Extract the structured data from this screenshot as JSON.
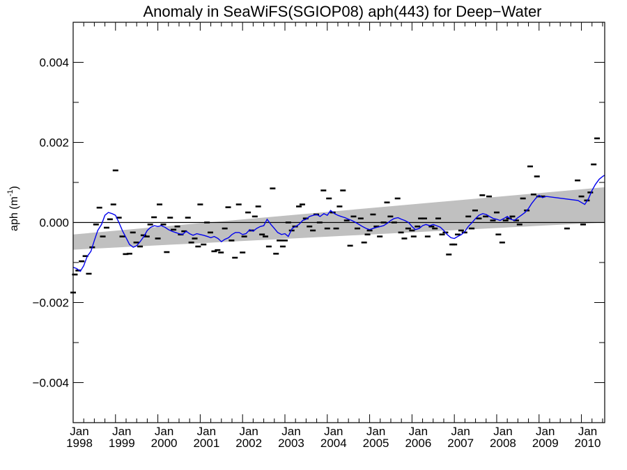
{
  "chart_data": {
    "type": "scatter",
    "title": "Anomaly in SeaWiFS(SGIOP08) aph(443) for Deep−Water",
    "ylabel_main": "aph (m",
    "ylabel_sup": "-1",
    "ylabel_close": ")",
    "xlabel": "",
    "xlim": [
      1998.0,
      2010.55
    ],
    "ylim": [
      -0.005,
      0.005
    ],
    "y_ticks": [
      {
        "value": 0.004,
        "label": "0.004"
      },
      {
        "value": 0.002,
        "label": "0.002"
      },
      {
        "value": 0.0,
        "label": "0.000"
      },
      {
        "value": -0.002,
        "label": "−0.002"
      },
      {
        "value": -0.004,
        "label": "−0.004"
      }
    ],
    "x_ticks": [
      {
        "value": 1998,
        "month": "Jan",
        "year": "1998"
      },
      {
        "value": 1999,
        "month": "Jan",
        "year": "1999"
      },
      {
        "value": 2000,
        "month": "Jan",
        "year": "2000"
      },
      {
        "value": 2001,
        "month": "Jan",
        "year": "2001"
      },
      {
        "value": 2002,
        "month": "Jan",
        "year": "2002"
      },
      {
        "value": 2003,
        "month": "Jan",
        "year": "2003"
      },
      {
        "value": 2004,
        "month": "Jan",
        "year": "2004"
      },
      {
        "value": 2005,
        "month": "Jan",
        "year": "2005"
      },
      {
        "value": 2006,
        "month": "Jan",
        "year": "2006"
      },
      {
        "value": 2007,
        "month": "Jan",
        "year": "2007"
      },
      {
        "value": 2008,
        "month": "Jan",
        "year": "2008"
      },
      {
        "value": 2009,
        "month": "Jan",
        "year": "2009"
      },
      {
        "value": 2010,
        "month": "Jan",
        "year": "2010"
      }
    ],
    "zero_line": 0.0,
    "trend_band": {
      "x": [
        1998.0,
        2010.55
      ],
      "lower": [
        -0.00068,
        0.0
      ],
      "upper": [
        -0.0003,
        0.00088
      ]
    },
    "monthly_anomalies": [
      {
        "x": 1998.0,
        "y": -0.00175
      },
      {
        "x": 1998.04,
        "y": -0.0013
      },
      {
        "x": 1998.12,
        "y": -0.0012
      },
      {
        "x": 1998.2,
        "y": -0.00097
      },
      {
        "x": 1998.29,
        "y": -0.00084
      },
      {
        "x": 1998.37,
        "y": -0.00128
      },
      {
        "x": 1998.45,
        "y": -0.00062
      },
      {
        "x": 1998.54,
        "y": -5e-05
      },
      {
        "x": 1998.62,
        "y": 0.00037
      },
      {
        "x": 1998.7,
        "y": -0.00035
      },
      {
        "x": 1998.79,
        "y": -0.00013
      },
      {
        "x": 1998.87,
        "y": 8e-05
      },
      {
        "x": 1998.95,
        "y": 0.00045
      },
      {
        "x": 1999.0,
        "y": 0.0013
      },
      {
        "x": 1999.08,
        "y": 0.00012
      },
      {
        "x": 1999.16,
        "y": -0.00035
      },
      {
        "x": 1999.24,
        "y": -0.00079
      },
      {
        "x": 1999.33,
        "y": -0.00078
      },
      {
        "x": 1999.41,
        "y": -0.00025
      },
      {
        "x": 1999.49,
        "y": -0.0005
      },
      {
        "x": 1999.58,
        "y": -0.0006
      },
      {
        "x": 1999.66,
        "y": -0.00032
      },
      {
        "x": 1999.74,
        "y": -0.00035
      },
      {
        "x": 1999.82,
        "y": -5e-05
      },
      {
        "x": 1999.91,
        "y": 0.00013
      },
      {
        "x": 2000.0,
        "y": -0.0004
      },
      {
        "x": 2000.04,
        "y": 0.00045
      },
      {
        "x": 2000.13,
        "y": -5e-05
      },
      {
        "x": 2000.21,
        "y": -0.00074
      },
      {
        "x": 2000.29,
        "y": 0.00012
      },
      {
        "x": 2000.37,
        "y": -0.00018
      },
      {
        "x": 2000.46,
        "y": -0.0001
      },
      {
        "x": 2000.54,
        "y": -0.0003
      },
      {
        "x": 2000.62,
        "y": -0.00022
      },
      {
        "x": 2000.71,
        "y": 0.00012
      },
      {
        "x": 2000.79,
        "y": -0.0005
      },
      {
        "x": 2000.87,
        "y": -0.0004
      },
      {
        "x": 2000.95,
        "y": -0.0006
      },
      {
        "x": 2001.0,
        "y": 0.00045
      },
      {
        "x": 2001.08,
        "y": -0.00055
      },
      {
        "x": 2001.16,
        "y": 0.0
      },
      {
        "x": 2001.24,
        "y": -0.00025
      },
      {
        "x": 2001.33,
        "y": -0.00072
      },
      {
        "x": 2001.41,
        "y": -0.00069
      },
      {
        "x": 2001.49,
        "y": -0.00075
      },
      {
        "x": 2001.58,
        "y": -0.00015
      },
      {
        "x": 2001.66,
        "y": 0.00038
      },
      {
        "x": 2001.74,
        "y": -0.00045
      },
      {
        "x": 2001.82,
        "y": -0.00088
      },
      {
        "x": 2001.91,
        "y": 0.00045
      },
      {
        "x": 2002.0,
        "y": -0.00075
      },
      {
        "x": 2002.04,
        "y": -0.00035
      },
      {
        "x": 2002.13,
        "y": 0.00025
      },
      {
        "x": 2002.21,
        "y": -0.0002
      },
      {
        "x": 2002.29,
        "y": 0.00015
      },
      {
        "x": 2002.37,
        "y": 0.0004
      },
      {
        "x": 2002.46,
        "y": -0.0003
      },
      {
        "x": 2002.54,
        "y": -0.00035
      },
      {
        "x": 2002.62,
        "y": -0.0006
      },
      {
        "x": 2002.71,
        "y": 0.00085
      },
      {
        "x": 2002.79,
        "y": -0.00078
      },
      {
        "x": 2002.87,
        "y": -0.00045
      },
      {
        "x": 2002.95,
        "y": -0.0006
      },
      {
        "x": 2003.0,
        "y": -0.00045
      },
      {
        "x": 2003.08,
        "y": 0.0
      },
      {
        "x": 2003.16,
        "y": -0.0002
      },
      {
        "x": 2003.24,
        "y": -0.0001
      },
      {
        "x": 2003.33,
        "y": 0.0004
      },
      {
        "x": 2003.41,
        "y": 0.00045
      },
      {
        "x": 2003.49,
        "y": 0.0001
      },
      {
        "x": 2003.58,
        "y": -0.0001
      },
      {
        "x": 2003.66,
        "y": -0.0002
      },
      {
        "x": 2003.74,
        "y": 0.0002
      },
      {
        "x": 2003.82,
        "y": 0.0
      },
      {
        "x": 2003.91,
        "y": 0.0008
      },
      {
        "x": 2004.0,
        "y": -0.00015
      },
      {
        "x": 2004.04,
        "y": 0.0006
      },
      {
        "x": 2004.13,
        "y": 0.00025
      },
      {
        "x": 2004.21,
        "y": -0.00015
      },
      {
        "x": 2004.29,
        "y": 0.0004
      },
      {
        "x": 2004.37,
        "y": 0.0008
      },
      {
        "x": 2004.46,
        "y": 5e-05
      },
      {
        "x": 2004.54,
        "y": -0.00058
      },
      {
        "x": 2004.62,
        "y": 0.00015
      },
      {
        "x": 2004.71,
        "y": -0.00015
      },
      {
        "x": 2004.79,
        "y": 0.0001
      },
      {
        "x": 2004.87,
        "y": -0.0005
      },
      {
        "x": 2004.95,
        "y": -0.0003
      },
      {
        "x": 2005.0,
        "y": -0.0002
      },
      {
        "x": 2005.08,
        "y": 0.0002
      },
      {
        "x": 2005.16,
        "y": -0.0001
      },
      {
        "x": 2005.24,
        "y": -0.00035
      },
      {
        "x": 2005.33,
        "y": 0.0
      },
      {
        "x": 2005.41,
        "y": 0.0005
      },
      {
        "x": 2005.49,
        "y": 0.00015
      },
      {
        "x": 2005.58,
        "y": 0.0
      },
      {
        "x": 2005.66,
        "y": 0.0006
      },
      {
        "x": 2005.74,
        "y": -0.00025
      },
      {
        "x": 2005.82,
        "y": -0.0004
      },
      {
        "x": 2005.91,
        "y": -0.00015
      },
      {
        "x": 2006.0,
        "y": -0.0002
      },
      {
        "x": 2006.04,
        "y": -0.00035
      },
      {
        "x": 2006.13,
        "y": -0.0001
      },
      {
        "x": 2006.21,
        "y": 0.0001
      },
      {
        "x": 2006.29,
        "y": 0.0001
      },
      {
        "x": 2006.37,
        "y": -0.00035
      },
      {
        "x": 2006.46,
        "y": -0.0001
      },
      {
        "x": 2006.54,
        "y": -0.00015
      },
      {
        "x": 2006.62,
        "y": 0.0001
      },
      {
        "x": 2006.71,
        "y": -0.0003
      },
      {
        "x": 2006.79,
        "y": -0.00025
      },
      {
        "x": 2006.87,
        "y": -0.0008
      },
      {
        "x": 2006.95,
        "y": -0.00055
      },
      {
        "x": 2007.0,
        "y": -0.00055
      },
      {
        "x": 2007.08,
        "y": -0.0003
      },
      {
        "x": 2007.16,
        "y": -0.0002
      },
      {
        "x": 2007.24,
        "y": -0.00025
      },
      {
        "x": 2007.33,
        "y": 0.00015
      },
      {
        "x": 2007.41,
        "y": -0.00015
      },
      {
        "x": 2007.49,
        "y": 0.0003
      },
      {
        "x": 2007.58,
        "y": 0.0001
      },
      {
        "x": 2007.66,
        "y": 0.00068
      },
      {
        "x": 2007.74,
        "y": 0.00015
      },
      {
        "x": 2007.82,
        "y": 0.00065
      },
      {
        "x": 2007.91,
        "y": 5e-05
      },
      {
        "x": 2008.0,
        "y": 0.00025
      },
      {
        "x": 2008.04,
        "y": -0.0003
      },
      {
        "x": 2008.13,
        "y": -0.0005
      },
      {
        "x": 2008.21,
        "y": 5e-05
      },
      {
        "x": 2008.29,
        "y": 0.0001
      },
      {
        "x": 2008.37,
        "y": 0.00015
      },
      {
        "x": 2008.46,
        "y": 5e-05
      },
      {
        "x": 2008.54,
        "y": -5e-05
      },
      {
        "x": 2008.62,
        "y": 0.0006
      },
      {
        "x": 2008.71,
        "y": 0.0003
      },
      {
        "x": 2008.79,
        "y": 0.0014
      },
      {
        "x": 2008.87,
        "y": 0.0007
      },
      {
        "x": 2008.95,
        "y": 0.00115
      },
      {
        "x": 2009.0,
        "y": 0.00065
      },
      {
        "x": 2009.08,
        "y": 0.00065
      },
      {
        "x": 2009.66,
        "y": -0.00015
      },
      {
        "x": 2009.91,
        "y": 0.00105
      },
      {
        "x": 2010.0,
        "y": 0.00065
      },
      {
        "x": 2010.04,
        "y": -5e-05
      },
      {
        "x": 2010.13,
        "y": 0.00055
      },
      {
        "x": 2010.21,
        "y": 0.00075
      },
      {
        "x": 2010.29,
        "y": 0.00145
      },
      {
        "x": 2010.37,
        "y": 0.0021
      }
    ],
    "running_mean": {
      "color": "#0000ee",
      "x": [
        1998.0,
        1998.08,
        1998.17,
        1998.25,
        1998.33,
        1998.42,
        1998.5,
        1998.58,
        1998.67,
        1998.75,
        1998.83,
        1998.92,
        1999.0,
        1999.08,
        1999.17,
        1999.25,
        1999.33,
        1999.42,
        1999.5,
        1999.58,
        1999.67,
        1999.75,
        1999.83,
        1999.92,
        2000.0,
        2000.08,
        2000.17,
        2000.25,
        2000.33,
        2000.42,
        2000.5,
        2000.58,
        2000.67,
        2000.75,
        2000.83,
        2000.92,
        2001.0,
        2001.08,
        2001.17,
        2001.25,
        2001.33,
        2001.42,
        2001.5,
        2001.58,
        2001.67,
        2001.75,
        2001.83,
        2001.92,
        2002.0,
        2002.08,
        2002.17,
        2002.25,
        2002.33,
        2002.42,
        2002.5,
        2002.58,
        2002.67,
        2002.75,
        2002.83,
        2002.92,
        2003.0,
        2003.08,
        2003.17,
        2003.25,
        2003.33,
        2003.42,
        2003.5,
        2003.58,
        2003.67,
        2003.75,
        2003.83,
        2003.92,
        2004.0,
        2004.08,
        2004.17,
        2004.25,
        2004.33,
        2004.42,
        2004.5,
        2004.58,
        2004.67,
        2004.75,
        2004.83,
        2004.92,
        2005.0,
        2005.08,
        2005.17,
        2005.25,
        2005.33,
        2005.42,
        2005.5,
        2005.58,
        2005.67,
        2005.75,
        2005.83,
        2005.92,
        2006.0,
        2006.08,
        2006.17,
        2006.25,
        2006.33,
        2006.42,
        2006.5,
        2006.58,
        2006.67,
        2006.75,
        2006.83,
        2006.92,
        2007.0,
        2007.08,
        2007.17,
        2007.25,
        2007.33,
        2007.42,
        2007.5,
        2007.58,
        2007.67,
        2007.75,
        2007.83,
        2007.92,
        2008.0,
        2008.08,
        2008.17,
        2008.25,
        2008.33,
        2008.42,
        2008.5,
        2008.58,
        2008.67,
        2008.75,
        2008.83,
        2008.92,
        2009.0,
        2009.08,
        2009.17,
        2009.92,
        2010.0,
        2010.08,
        2010.17,
        2010.25,
        2010.33,
        2010.42,
        2010.5,
        2010.55
      ],
      "y": [
        -0.00112,
        -0.00115,
        -0.00122,
        -0.00108,
        -0.00085,
        -0.00072,
        -0.00045,
        -0.0002,
        -5e-05,
        0.00018,
        0.00025,
        0.00022,
        0.00018,
        0.0,
        -0.00022,
        -0.00038,
        -0.00055,
        -0.00062,
        -0.00058,
        -0.00048,
        -0.00035,
        -0.0002,
        -0.00012,
        -8e-05,
        -0.0001,
        -8e-05,
        -0.00012,
        -0.00018,
        -0.00022,
        -0.00025,
        -0.00028,
        -0.0003,
        -0.00022,
        -0.00028,
        -0.00032,
        -0.00028,
        -0.0003,
        -0.00032,
        -0.00035,
        -0.00038,
        -0.00035,
        -0.0004,
        -0.00048,
        -0.00042,
        -0.00038,
        -0.0003,
        -0.00025,
        -0.00025,
        -0.0003,
        -0.00028,
        -0.00018,
        -0.00022,
        -0.00015,
        -0.0001,
        -8e-05,
        8e-05,
        -5e-05,
        -0.00015,
        -0.00025,
        -0.0003,
        -0.00028,
        -0.00035,
        -0.00015,
        -0.0001,
        -5e-05,
        5e-05,
        8e-05,
        0.00015,
        0.00018,
        0.0002,
        0.00015,
        0.00022,
        0.00018,
        0.0003,
        0.00022,
        0.00018,
        0.00015,
        0.00012,
        8e-05,
        5e-05,
        0.0,
        -5e-05,
        -0.0001,
        -0.00015,
        -0.00018,
        -0.00015,
        -0.00012,
        -0.0001,
        -8e-05,
        -2e-05,
        5e-05,
        0.0001,
        0.00012,
        8e-05,
        5e-05,
        0.0,
        -0.0001,
        -0.00018,
        -0.00015,
        -8e-05,
        -5e-05,
        -8e-05,
        -5e-05,
        -8e-05,
        -0.00012,
        -0.0002,
        -0.0003,
        -0.00038,
        -0.0004,
        -0.00035,
        -0.0003,
        -0.00022,
        -0.0001,
        0.0,
        0.0001,
        0.00018,
        0.00022,
        0.0002,
        0.00015,
        0.0001,
        8e-05,
        5e-05,
        0.0001,
        0.00015,
        8e-05,
        5e-05,
        0.00012,
        0.00018,
        0.00025,
        0.00035,
        0.00048,
        0.0006,
        0.00068,
        0.00062,
        0.00065,
        0.00055,
        0.0005,
        0.00045,
        0.0006,
        0.0008,
        0.00095,
        0.00108,
        0.00115,
        0.00118
      ]
    }
  }
}
